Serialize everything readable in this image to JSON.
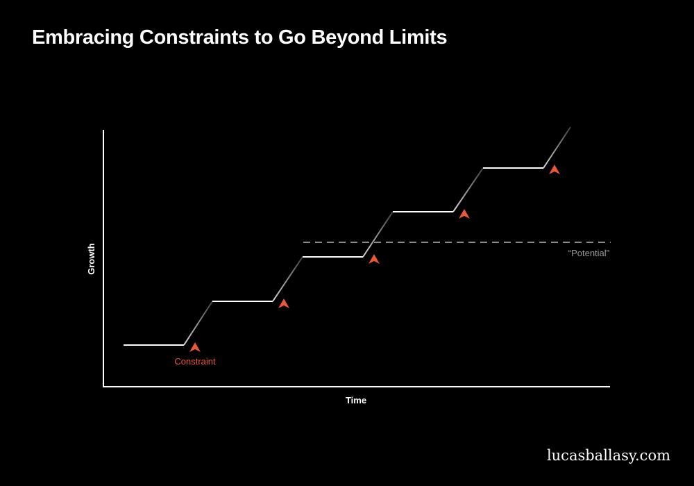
{
  "title": "Embracing Constraints to Go Beyond Limits",
  "diagram": {
    "x_axis_label": "Time",
    "y_axis_label": "Growth",
    "constraint_label": "Constraint",
    "potential_label": "“Potential”",
    "steps": 5,
    "constraint_markers": 5
  },
  "colors": {
    "background": "#000000",
    "line": "#ffffff",
    "riser": "#888888",
    "potential_line": "#8a8a8a",
    "constraint": "#e8583a",
    "constraint_label": "#e8583a"
  },
  "watermark": "lucasballasy.com"
}
